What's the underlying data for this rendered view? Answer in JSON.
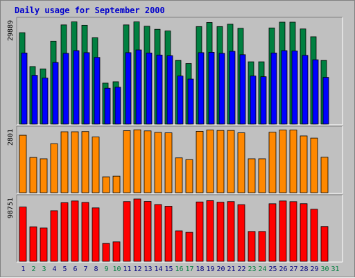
{
  "chart_data": {
    "type": "bar",
    "title": "Daily usage for September 2000",
    "colors": {
      "title": "#0000cc",
      "background": "#c0c0c0",
      "weekday_label": "#000080",
      "weekend_label": "#007f3f",
      "hits": "#008040",
      "files": "#0000ff",
      "sites": "#ff8800",
      "kbytes": "#ff0000"
    },
    "weekend_days": [
      "2",
      "3",
      "9",
      "10",
      "16",
      "17",
      "23",
      "24",
      "30",
      "31"
    ],
    "categories": [
      "1",
      "2",
      "3",
      "4",
      "5",
      "6",
      "7",
      "8",
      "9",
      "10",
      "11",
      "12",
      "13",
      "14",
      "15",
      "16",
      "17",
      "18",
      "19",
      "20",
      "21",
      "22",
      "23",
      "24",
      "25",
      "26",
      "27",
      "28",
      "29",
      "30",
      "31"
    ],
    "panels": [
      {
        "max_label": "29889",
        "ylim": [
          0,
          29889
        ],
        "series": [
          {
            "key": "hits",
            "values": [
              27000,
              17000,
              16300,
              24500,
              29300,
              30200,
              29200,
              25500,
              12100,
              12500,
              29300,
              30200,
              28900,
              28000,
              27500,
              18800,
              17900,
              28800,
              30000,
              28800,
              29500,
              28300,
              18400,
              18400,
              28400,
              30100,
              30100,
              28100,
              25800,
              18800,
              null
            ]
          },
          {
            "key": "files",
            "values": [
              21000,
              14400,
              13600,
              18200,
              20900,
              21700,
              21100,
              19700,
              10600,
              10900,
              21100,
              21900,
              21000,
              20400,
              20200,
              14200,
              13300,
              21100,
              21200,
              20900,
              21500,
              20500,
              14200,
              14000,
              21000,
              21700,
              21600,
              20300,
              19000,
              13800,
              null
            ]
          }
        ]
      },
      {
        "max_label": "2801",
        "ylim": [
          0,
          2801
        ],
        "series": [
          {
            "key": "sites",
            "values": [
              2640,
              1620,
              1560,
              2250,
              2800,
              2800,
              2810,
              2560,
              730,
              760,
              2850,
              2890,
              2840,
              2770,
              2750,
              1600,
              1520,
              2820,
              2880,
              2860,
              2860,
              2750,
              1560,
              1560,
              2780,
              2880,
              2880,
              2610,
              2510,
              1630,
              null
            ]
          }
        ]
      },
      {
        "max_label": "98751",
        "ylim": [
          0,
          98751
        ],
        "series": [
          {
            "key": "kbytes",
            "values": [
              88000,
              56000,
              54000,
              82000,
              95000,
              97800,
              95400,
              86600,
              29000,
              31600,
              96800,
              101000,
              97000,
              92000,
              89200,
              49400,
              47000,
              96200,
              98300,
              95800,
              96800,
              91800,
              48400,
              48400,
              93300,
              97800,
              96700,
              93400,
              84400,
              56400,
              null
            ]
          }
        ]
      }
    ]
  }
}
